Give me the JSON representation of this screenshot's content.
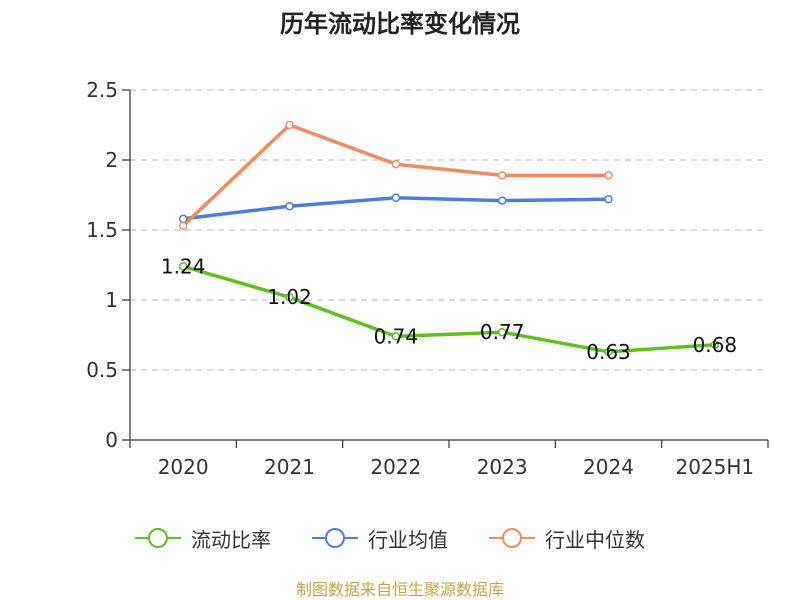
{
  "title": "历年流动比率变化情况",
  "source": "制图数据来自恒生聚源数据库",
  "chart_data": {
    "type": "line",
    "title": "历年流动比率变化情况",
    "categories": [
      "2020",
      "2021",
      "2022",
      "2023",
      "2024",
      "2025H1"
    ],
    "ylim": [
      0,
      2.5
    ],
    "yticks": [
      "0",
      "0.5",
      "1",
      "1.5",
      "2",
      "2.5"
    ],
    "grid": true,
    "legend_position": "bottom",
    "series": [
      {
        "name": "流动比率",
        "color": "#5dc21f",
        "values": [
          1.24,
          1.02,
          0.74,
          0.77,
          0.63,
          0.68
        ],
        "labels": [
          "1.24",
          "1.02",
          "0.74",
          "0.77",
          "0.63",
          "0.68"
        ]
      },
      {
        "name": "行业均值",
        "color": "#4b7fdb",
        "values": [
          1.58,
          1.67,
          1.73,
          1.71,
          1.72,
          null
        ]
      },
      {
        "name": "行业中位数",
        "color": "#f58b5a",
        "values": [
          1.53,
          2.25,
          1.97,
          1.89,
          1.89,
          null
        ]
      }
    ]
  }
}
